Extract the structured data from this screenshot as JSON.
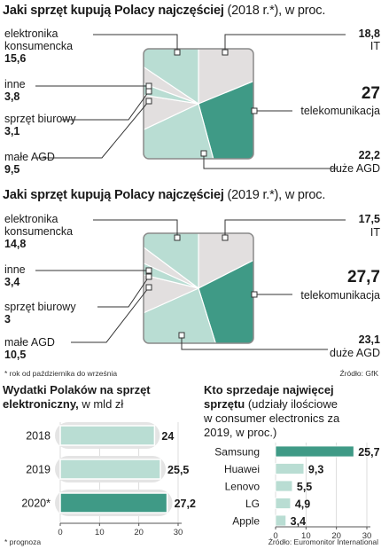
{
  "pie_charts": [
    {
      "title_bold": "Jaki sprzęt kupują Polacy najczęściej",
      "title_light": " (2018 r.*), w proc.",
      "labels": {
        "elektronika": [
          "elektronika",
          "konsumencka"
        ],
        "inne": "inne",
        "biurowy": "sprzęt biurowy",
        "agd": "małe AGD",
        "it": "IT",
        "tele": "telekomunikacja",
        "duze": "duże AGD"
      },
      "values": {
        "elektronika": "15,6",
        "inne": "3,8",
        "biurowy": "3,1",
        "agd": "9,5",
        "it": "18,8",
        "tele": "27",
        "duze": "22,2"
      }
    },
    {
      "title_bold": "Jaki sprzęt kupują Polacy najczęściej",
      "title_light": " (2019 r.*), w proc.",
      "labels": {
        "elektronika": [
          "elektronika",
          "konsumencka"
        ],
        "inne": "inne",
        "biurowy": "sprzęt biurowy",
        "agd": "małe AGD",
        "it": "IT",
        "tele": "telekomunikacja",
        "duze": "duże AGD"
      },
      "values": {
        "elektronika": "14,8",
        "inne": "3,4",
        "biurowy": "3",
        "agd": "10,5",
        "it": "17,5",
        "tele": "27,7",
        "duze": "23,1"
      }
    }
  ],
  "footnote_top": "* rok od października do września",
  "source_top": "Źródło: GfK",
  "footnote_bottom": "* prognoza",
  "source_bottom": "Źródło: Euromonitor International",
  "colors": {
    "teal_dark": "#3f9a86",
    "teal_light": "#b9ddd3",
    "gray": "#e2dfdf",
    "axis": "#555555"
  },
  "chart_data": [
    {
      "type": "pie",
      "title": "Jaki sprzęt kupują Polacy najczęściej (2018 r.*), w proc.",
      "categories": [
        "IT",
        "telekomunikacja",
        "duże AGD",
        "małe AGD",
        "sprzęt biurowy",
        "inne",
        "elektronika konsumencka"
      ],
      "values": [
        18.8,
        27,
        22.2,
        9.5,
        3.1,
        3.8,
        15.6
      ],
      "colors": [
        "#e2dfdf",
        "#3f9a86",
        "#b9ddd3",
        "#e2dfdf",
        "#b9ddd3",
        "#e2dfdf",
        "#b9ddd3"
      ]
    },
    {
      "type": "pie",
      "title": "Jaki sprzęt kupują Polacy najczęściej (2019 r.*), w proc.",
      "categories": [
        "IT",
        "telekomunikacja",
        "duże AGD",
        "małe AGD",
        "sprzęt biurowy",
        "inne",
        "elektronika konsumencka"
      ],
      "values": [
        17.5,
        27.7,
        23.1,
        10.5,
        3,
        3.4,
        14.8
      ],
      "colors": [
        "#e2dfdf",
        "#3f9a86",
        "#b9ddd3",
        "#e2dfdf",
        "#b9ddd3",
        "#e2dfdf",
        "#b9ddd3"
      ]
    },
    {
      "type": "bar",
      "orientation": "horizontal",
      "title_bold": "Wydatki Polaków na sprzęt elektroniczny,",
      "title_light": " w mld zł",
      "categories": [
        "2018",
        "2019",
        "2020*"
      ],
      "values": [
        24,
        25.5,
        27.2
      ],
      "value_labels": [
        "24",
        "25,5",
        "27,2"
      ],
      "highlight": [
        false,
        false,
        true
      ],
      "xlim": [
        0,
        30
      ],
      "ticks": [
        0,
        10,
        20,
        30
      ],
      "tick_labels": [
        "0",
        "10",
        "20",
        "30"
      ]
    },
    {
      "type": "bar",
      "orientation": "horizontal",
      "title_bold": "Kto sprzedaje najwięcej sprzętu",
      "title_light": " (udziały ilościowe w consumer electronics za 2019, w proc.)",
      "categories": [
        "Samsung",
        "Huawei",
        "Lenovo",
        "LG",
        "Apple"
      ],
      "values": [
        25.7,
        9.3,
        5.5,
        4.9,
        3.4
      ],
      "value_labels": [
        "25,7",
        "9,3",
        "5,5",
        "4,9",
        "3,4"
      ],
      "highlight": [
        true,
        false,
        false,
        false,
        false
      ],
      "xlim": [
        0,
        30
      ],
      "ticks": [
        0,
        10,
        20,
        30
      ],
      "tick_labels": [
        "0",
        "10",
        "20",
        "30"
      ]
    }
  ]
}
